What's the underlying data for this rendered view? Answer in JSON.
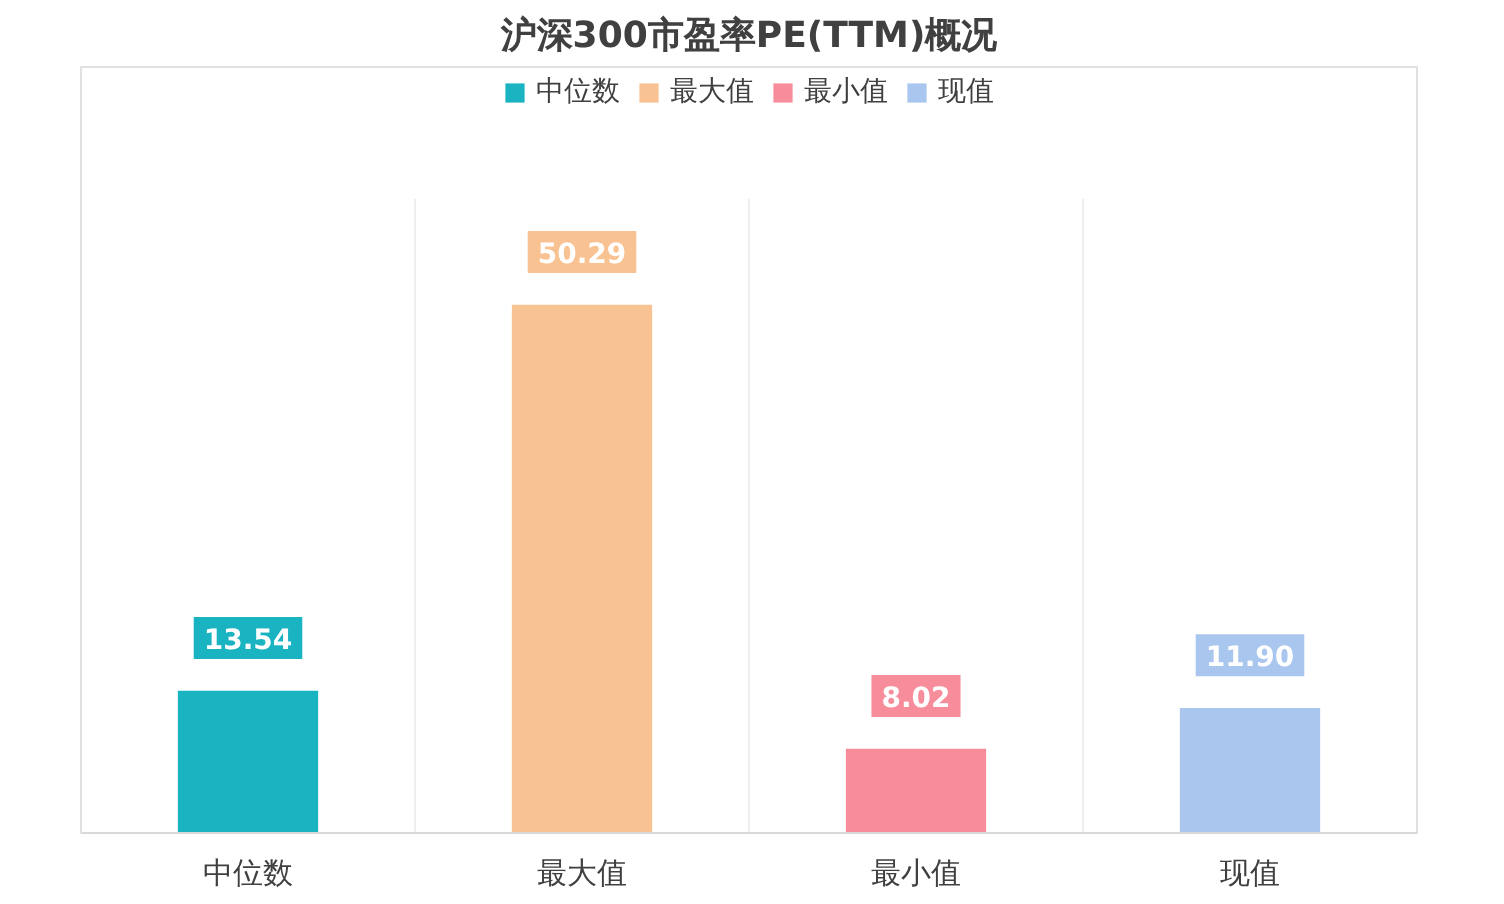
{
  "chart_data": {
    "type": "bar",
    "title": "沪深300市盈率PE(TTM)概况",
    "categories": [
      "中位数",
      "最大值",
      "最小值",
      "现值"
    ],
    "series": [
      {
        "name": "中位数",
        "color": "#1ab3c1",
        "values": [
          13.54,
          null,
          null,
          null
        ],
        "value_labels": [
          "13.54",
          null,
          null,
          null
        ]
      },
      {
        "name": "最大值",
        "color": "#f8c292",
        "values": [
          null,
          50.29,
          null,
          null
        ],
        "value_labels": [
          null,
          "50.29",
          null,
          null
        ]
      },
      {
        "name": "最小值",
        "color": "#f78d9a",
        "values": [
          null,
          null,
          8.02,
          null
        ],
        "value_labels": [
          null,
          null,
          "8.02",
          null
        ]
      },
      {
        "name": "现值",
        "color": "#a9c6ee",
        "values": [
          null,
          null,
          null,
          11.9
        ],
        "value_labels": [
          null,
          null,
          null,
          "11.90"
        ]
      }
    ],
    "tick_labels": "x",
    "legend": "top",
    "grid": false
  }
}
